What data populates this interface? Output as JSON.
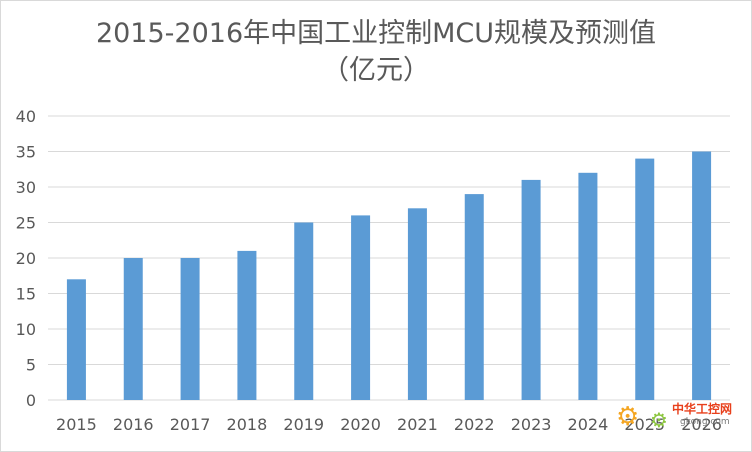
{
  "chart_data": {
    "type": "bar",
    "title": "2015-2016年中国工业控制MCU规模及预测值",
    "subtitle": "（亿元）",
    "categories": [
      "2015",
      "2016",
      "2017",
      "2018",
      "2019",
      "2020",
      "2021",
      "2022",
      "2023",
      "2024",
      "2025",
      "2026"
    ],
    "values": [
      17,
      20,
      20,
      21,
      25,
      26,
      27,
      29,
      31,
      32,
      34,
      35
    ],
    "xlabel": "",
    "ylabel": "",
    "ylim": [
      0,
      40
    ],
    "yticks": [
      0,
      5,
      10,
      15,
      20,
      25,
      30,
      35,
      40
    ],
    "grid": true,
    "legend": "none",
    "bar_color": "#5b9bd5"
  },
  "watermark": {
    "brand": "中华工控网",
    "url": "gkong.com",
    "icon": "gear-icon"
  },
  "colors": {
    "gridline": "#d9d9d9",
    "axis_text": "#595959",
    "title_text": "#595959"
  }
}
